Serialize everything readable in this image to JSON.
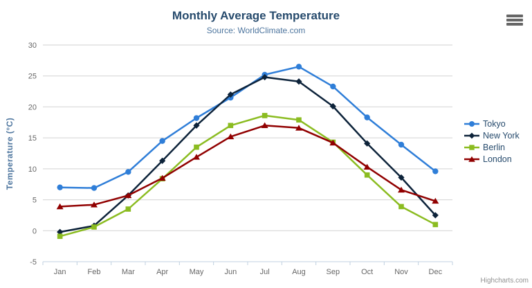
{
  "header": {
    "title": "Monthly Average Temperature",
    "subtitle": "Source: WorldClimate.com"
  },
  "credits_label": "Highcharts.com",
  "colors": {
    "title": "#274b6d",
    "subtitle": "#4d759e",
    "axis_title": "#4d759e",
    "axis_labels": "#666666",
    "gridline": "#d2d2d2",
    "axis_line": "#c0d0e0",
    "legend_text": "#274b6d",
    "menu_icon": "#666666",
    "credits": "#909090"
  },
  "chart_data": {
    "type": "line",
    "title": "Monthly Average Temperature",
    "subtitle": "Source: WorldClimate.com",
    "categories": [
      "Jan",
      "Feb",
      "Mar",
      "Apr",
      "May",
      "Jun",
      "Jul",
      "Aug",
      "Sep",
      "Oct",
      "Nov",
      "Dec"
    ],
    "series": [
      {
        "name": "Tokyo",
        "color": "#2f7ed8",
        "marker": "circle",
        "values": [
          7.0,
          6.9,
          9.5,
          14.5,
          18.2,
          21.5,
          25.2,
          26.5,
          23.3,
          18.3,
          13.9,
          9.6
        ]
      },
      {
        "name": "New York",
        "color": "#0d233a",
        "marker": "diamond",
        "values": [
          -0.2,
          0.8,
          5.7,
          11.3,
          17.0,
          22.0,
          24.8,
          24.1,
          20.1,
          14.1,
          8.6,
          2.5
        ]
      },
      {
        "name": "Berlin",
        "color": "#8bbc21",
        "marker": "square",
        "values": [
          -0.9,
          0.6,
          3.5,
          8.4,
          13.5,
          17.0,
          18.6,
          17.9,
          14.3,
          9.0,
          3.9,
          1.0
        ]
      },
      {
        "name": "London",
        "color": "#910000",
        "marker": "triangle",
        "values": [
          3.9,
          4.2,
          5.7,
          8.5,
          11.9,
          15.2,
          17.0,
          16.6,
          14.2,
          10.3,
          6.6,
          4.8
        ]
      }
    ],
    "xlabel": "",
    "ylabel": "Temperature (°C)",
    "ylim": [
      -5,
      30
    ],
    "ytick_step": 5,
    "grid": true,
    "legend_position": "right"
  }
}
